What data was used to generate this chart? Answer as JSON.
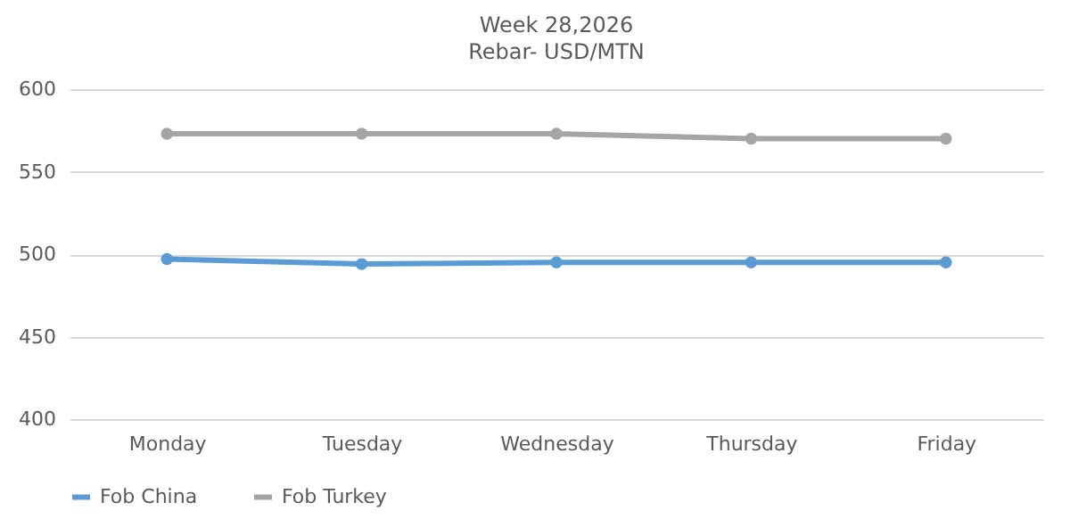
{
  "chart_data": {
    "type": "line",
    "title": "Week 28,2026",
    "subtitle": "Rebar- USD/MTN",
    "categories": [
      "Monday",
      "Tuesday",
      "Wednesday",
      "Thursday",
      "Friday"
    ],
    "series": [
      {
        "name": "Fob China",
        "color": "#5b9bd5",
        "values": [
          497,
          494,
          495,
          495,
          495
        ]
      },
      {
        "name": "Fob Turkey",
        "color": "#a5a5a5",
        "values": [
          573,
          573,
          573,
          570,
          570
        ]
      }
    ],
    "ylim": [
      400,
      600
    ],
    "yticks": [
      400,
      450,
      500,
      550,
      600
    ],
    "grid": "y",
    "legend": "bottom",
    "marker": "circle",
    "line_style": "solid"
  }
}
